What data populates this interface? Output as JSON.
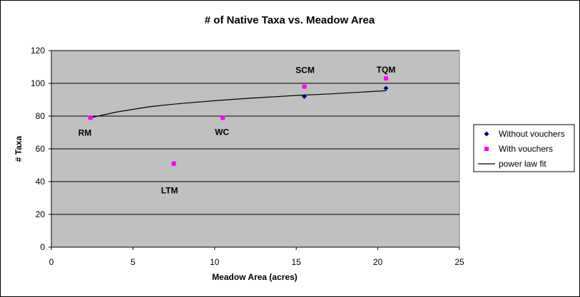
{
  "chart_data": {
    "type": "scatter",
    "title": "# of Native Taxa vs. Meadow Area",
    "xlabel": "Meadow Area (acres)",
    "ylabel": "# Taxa",
    "xlim": [
      0,
      25
    ],
    "ylim": [
      0,
      120
    ],
    "xticks": [
      "0",
      "5",
      "10",
      "15",
      "20",
      "25"
    ],
    "yticks": [
      "0",
      "20",
      "40",
      "60",
      "80",
      "100",
      "120"
    ],
    "grid": true,
    "legend_position": "right",
    "series": [
      {
        "name": "Without vouchers",
        "marker": "diamond",
        "color": "#000080",
        "x": [
          2.4,
          7.5,
          10.5,
          15.5,
          20.5
        ],
        "y": [
          79,
          51,
          79,
          92,
          97
        ]
      },
      {
        "name": "With vouchers",
        "marker": "square",
        "color": "#ff00ff",
        "x": [
          2.4,
          7.5,
          10.5,
          15.5,
          20.5
        ],
        "y": [
          79,
          51,
          79,
          98,
          103
        ]
      },
      {
        "name": "power law fit",
        "type": "line",
        "color": "#000000",
        "x": [
          2.4,
          4,
          6,
          7.5,
          10,
          12,
          15,
          17,
          20.5
        ],
        "y": [
          79,
          82.5,
          85.7,
          87.3,
          89.4,
          90.8,
          92.6,
          93.5,
          95.5
        ]
      }
    ],
    "point_labels": [
      {
        "text": "RM",
        "x": 2.4,
        "y": 79
      },
      {
        "text": "LTM",
        "x": 7.5,
        "y": 51
      },
      {
        "text": "WC",
        "x": 10.5,
        "y": 79
      },
      {
        "text": "SCM",
        "x": 15.5,
        "y": 98
      },
      {
        "text": "TQM",
        "x": 20.5,
        "y": 103
      }
    ],
    "colors": {
      "plot_background": "#c0c0c0",
      "gridline": "#000000"
    }
  }
}
